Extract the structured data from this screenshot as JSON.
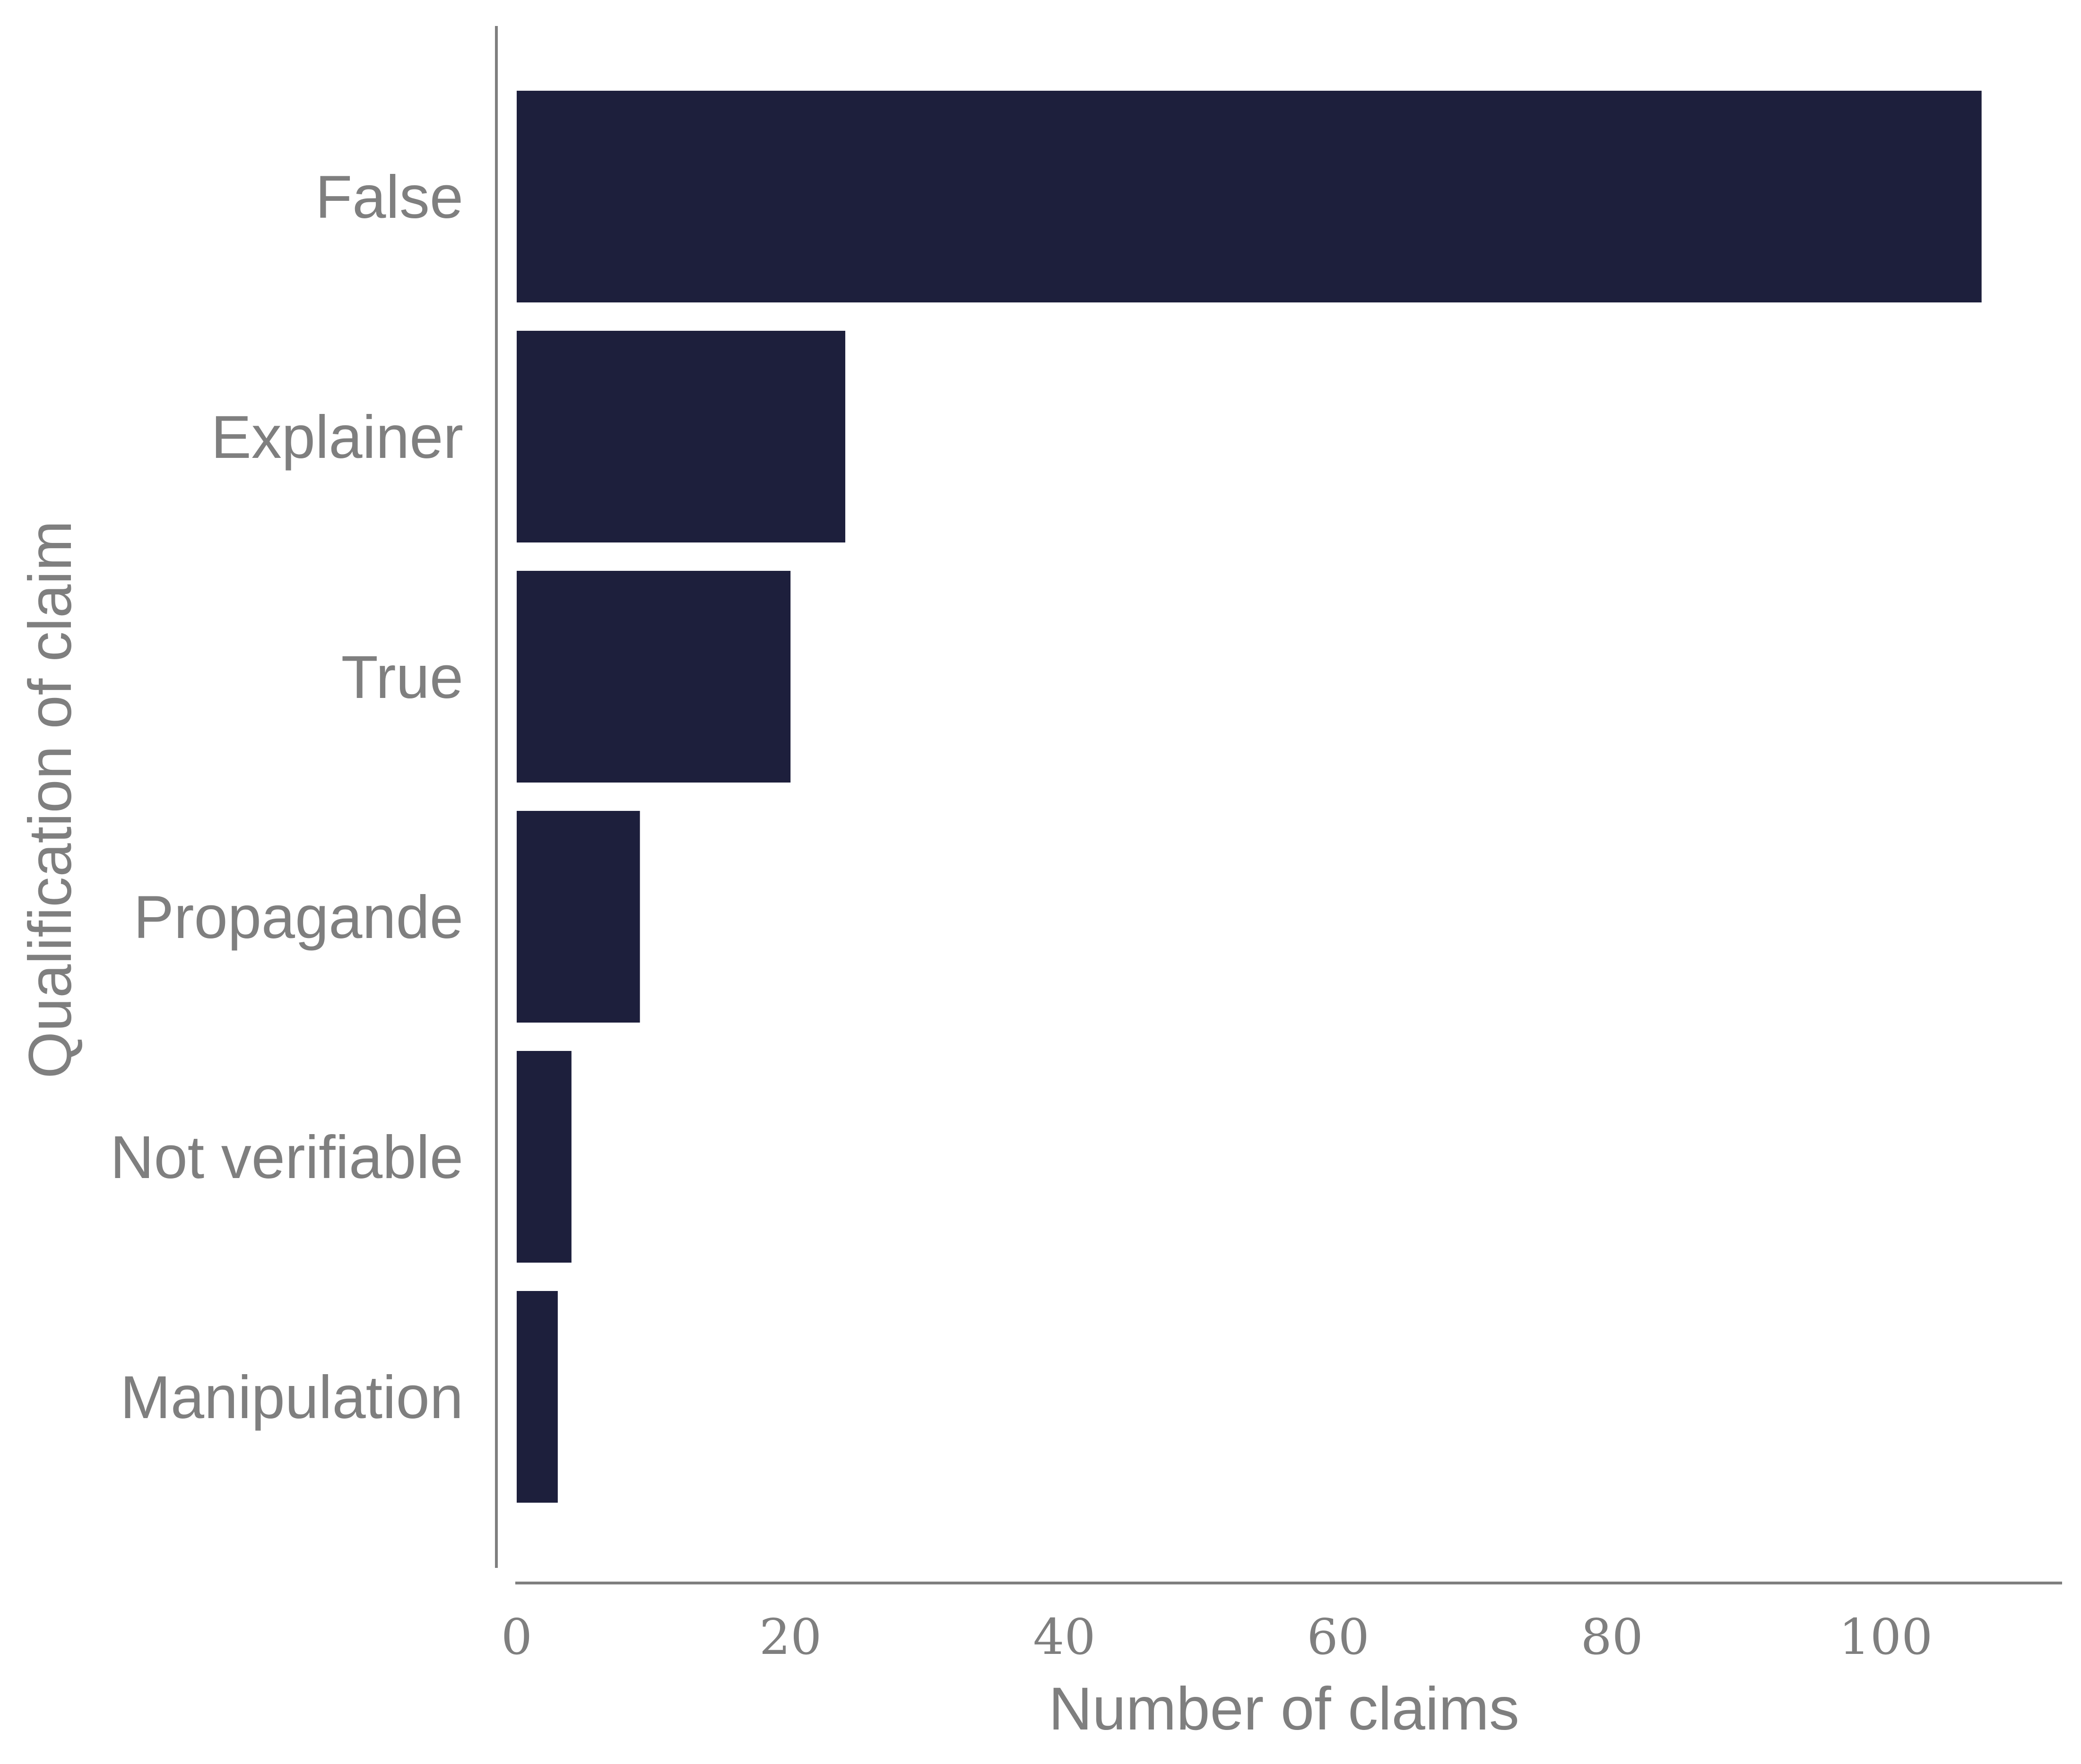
{
  "chart_data": {
    "type": "bar",
    "orientation": "horizontal",
    "categories": [
      "False",
      "Explainer",
      "True",
      "Propagande",
      "Not verifiable",
      "Manipulation"
    ],
    "values": [
      107,
      24,
      20,
      9,
      4,
      3
    ],
    "title": "",
    "xlabel": "Number of claims",
    "ylabel": "Qualification of claim",
    "xlim": [
      0,
      112
    ],
    "xticks": [
      0,
      20,
      40,
      60,
      80,
      100
    ],
    "xtick_labels": [
      "0",
      "20",
      "40",
      "60",
      "80",
      "100"
    ],
    "grid": false,
    "bar_color": "#1d1f3c",
    "axis_color": "#7f7f7f"
  }
}
